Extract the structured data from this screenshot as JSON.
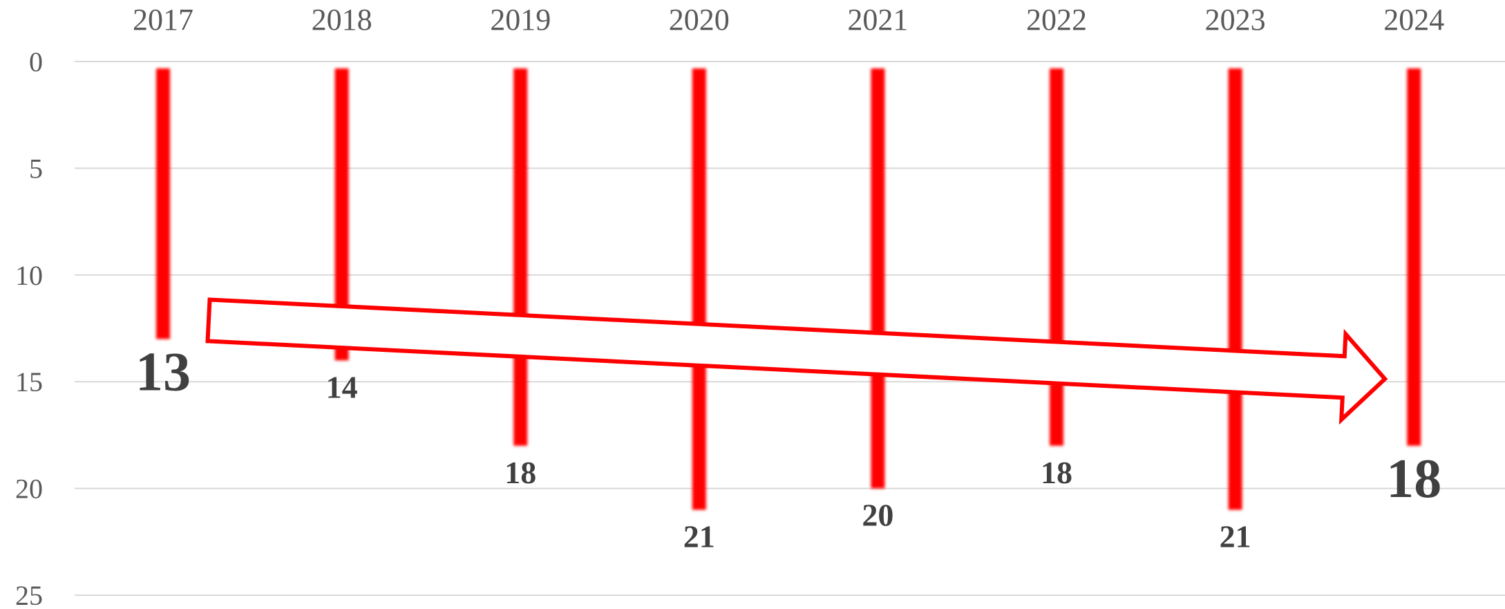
{
  "chart_data": {
    "type": "bar",
    "orientation": "vertical",
    "y_axis_inverted": true,
    "x_axis_position": "top",
    "categories": [
      "2017",
      "2018",
      "2019",
      "2020",
      "2021",
      "2022",
      "2023",
      "2024"
    ],
    "values": [
      13,
      14,
      18,
      21,
      20,
      18,
      21,
      18
    ],
    "value_labels": [
      "13",
      "14",
      "18",
      "21",
      "20",
      "18",
      "21",
      "18"
    ],
    "emphasized_labels": [
      0,
      7
    ],
    "y_ticks": [
      "0",
      "5",
      "10",
      "15",
      "20",
      "25"
    ],
    "ylim": [
      0,
      25
    ],
    "grid": true,
    "bar_color": "#ff0000",
    "arrow": {
      "from_category": 0,
      "to_category": 7,
      "color": "#ff0000"
    },
    "title": "",
    "xlabel": "",
    "ylabel": ""
  }
}
